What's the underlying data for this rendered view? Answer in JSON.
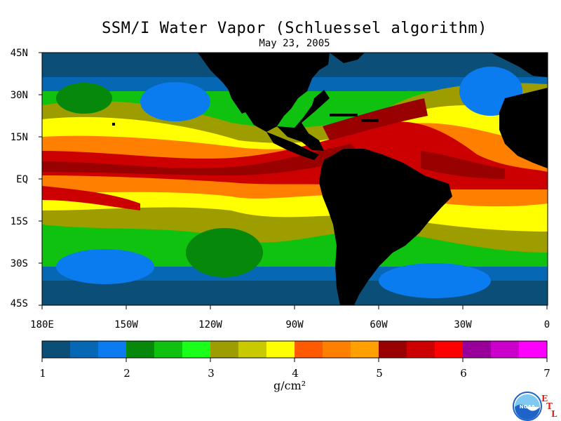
{
  "title": "SSM/I Water Vapor (Schluessel algorithm)",
  "subtitle": "May 23, 2005",
  "map": {
    "lat_labels": [
      "45N",
      "30N",
      "15N",
      "EQ",
      "15S",
      "30S",
      "45S"
    ],
    "lon_labels": [
      "180E",
      "150W",
      "120W",
      "90W",
      "60W",
      "30W",
      "0"
    ],
    "land_color": "#000000",
    "frame_color": "#000000"
  },
  "colorbar": {
    "tick_labels": [
      "1",
      "2",
      "3",
      "4",
      "5",
      "6",
      "7"
    ],
    "units": "g/cm²",
    "colors": [
      "#0b4f78",
      "#0668b4",
      "#0a7cf0",
      "#06880a",
      "#10c210",
      "#1aff1a",
      "#9d9d00",
      "#c9c900",
      "#ffff00",
      "#ff5a00",
      "#ff7f00",
      "#ffa000",
      "#990000",
      "#cc0000",
      "#ff0000",
      "#990099",
      "#cc00cc",
      "#ff00ff"
    ]
  },
  "logo": {
    "text": "NOAA",
    "letters": [
      "E",
      "T",
      "L"
    ],
    "colors": {
      "blue": "#1e64c8",
      "light": "#7fc8f0",
      "red": "#e0201a"
    }
  }
}
